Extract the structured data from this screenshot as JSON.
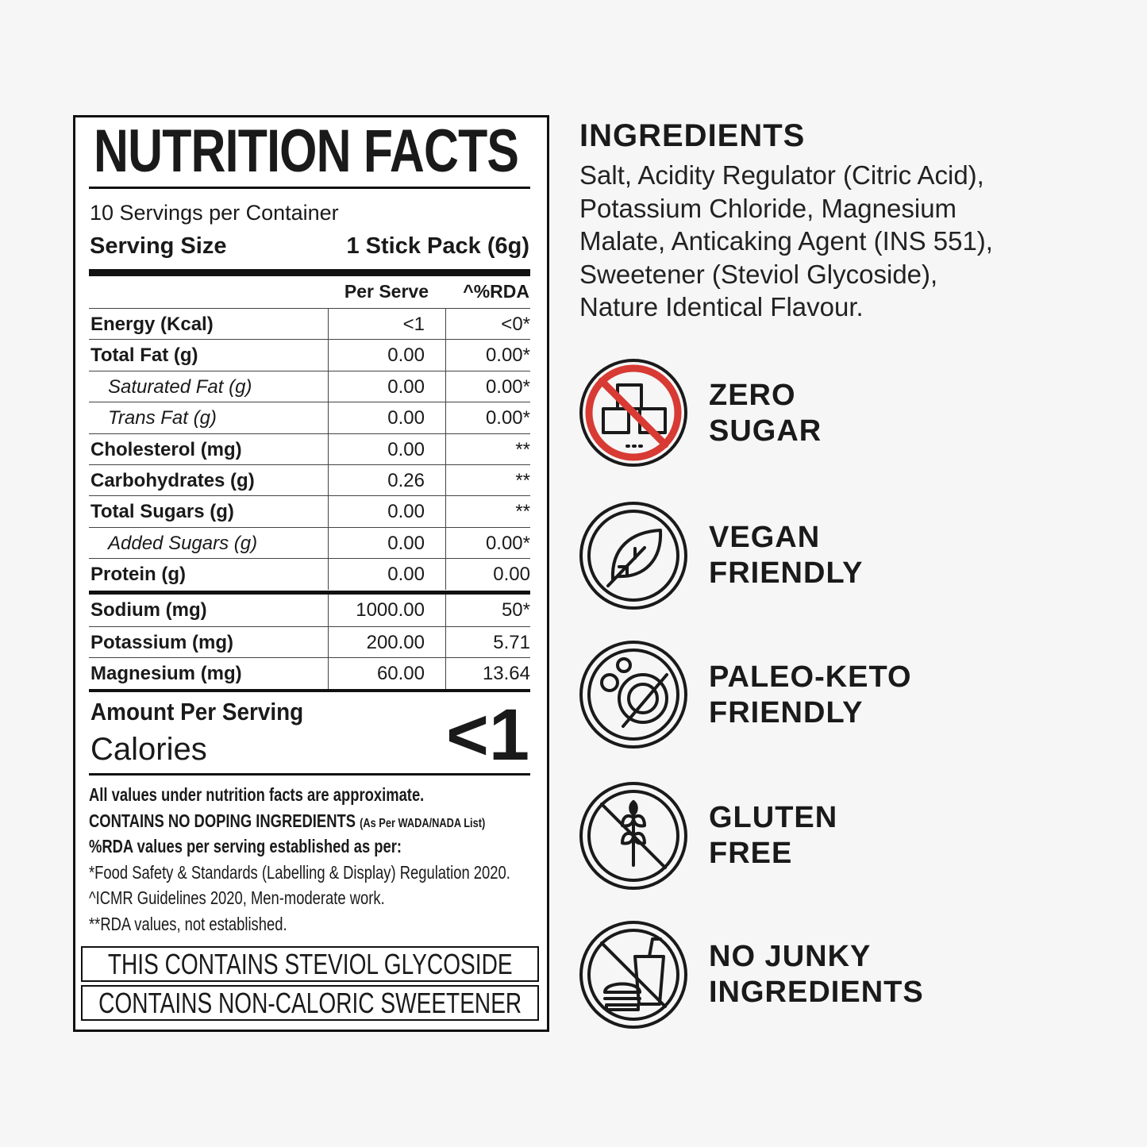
{
  "nutrition": {
    "title": "NUTRITION FACTS",
    "servings": "10 Servings per Container",
    "serving_size_label": "Serving Size",
    "serving_size_value": "1 Stick Pack (6g)",
    "columns": [
      "Per Serve",
      "^%RDA"
    ],
    "rows": [
      {
        "label": "Energy (Kcal)",
        "per_serve": "<1",
        "rda": "<0*"
      },
      {
        "label": "Total Fat (g)",
        "per_serve": "0.00",
        "rda": "0.00*",
        "sub": [
          {
            "label": "Saturated Fat (g)",
            "per_serve": "0.00",
            "rda": "0.00*"
          },
          {
            "label": "Trans Fat (g)",
            "per_serve": "0.00",
            "rda": "0.00*"
          }
        ]
      },
      {
        "label": "Cholesterol (mg)",
        "per_serve": "0.00",
        "rda": "**"
      },
      {
        "label": "Carbohydrates (g)",
        "per_serve": "0.26",
        "rda": "**"
      },
      {
        "label": "Total Sugars (g)",
        "per_serve": "0.00",
        "rda": "**",
        "sub": [
          {
            "label": "Added Sugars (g)",
            "per_serve": "0.00",
            "rda": "0.00*"
          }
        ]
      },
      {
        "label": "Protein (g)",
        "per_serve": "0.00",
        "rda": "0.00"
      }
    ],
    "minerals": [
      {
        "label": "Sodium (mg)",
        "per_serve": "1000.00",
        "rda": "50*"
      },
      {
        "label": "Potassium (mg)",
        "per_serve": "200.00",
        "rda": "5.71"
      },
      {
        "label": "Magnesium (mg)",
        "per_serve": "60.00",
        "rda": "13.64"
      }
    ],
    "amount_label": "Amount Per Serving",
    "calories_label": "Calories",
    "calories_value": "<1",
    "notes": {
      "approximate": "All values under nutrition facts are approximate.",
      "doping": "CONTAINS NO DOPING INGREDIENTS",
      "doping_source": "(As Per WADA/NADA List)",
      "rda_basis": "%RDA values per serving established as per:",
      "fssai": "*Food Safety & Standards (Labelling & Display) Regulation 2020.",
      "icmr": "^ICMR Guidelines 2020, Men-moderate work.",
      "not_established": "**RDA values, not established."
    },
    "warnings": [
      "THIS CONTAINS STEVIOL GLYCOSIDE",
      "CONTAINS NON-CALORIC SWEETENER"
    ]
  },
  "ingredients": {
    "title": "INGREDIENTS",
    "lines": [
      "Salt, Acidity Regulator (Citric Acid),",
      "Potassium Chloride, Magnesium",
      "Malate, Anticaking Agent (INS 551),",
      "Sweetener (Steviol Glycoside),",
      "Nature Identical Flavour."
    ]
  },
  "badges": [
    {
      "lines": [
        "ZERO",
        "SUGAR"
      ]
    },
    {
      "lines": [
        "VEGAN",
        "FRIENDLY"
      ]
    },
    {
      "lines": [
        "PALEO-KETO",
        "FRIENDLY"
      ]
    },
    {
      "lines": [
        "GLUTEN",
        "FREE"
      ]
    },
    {
      "lines": [
        "NO JUNKY",
        "INGREDIENTS"
      ]
    }
  ]
}
